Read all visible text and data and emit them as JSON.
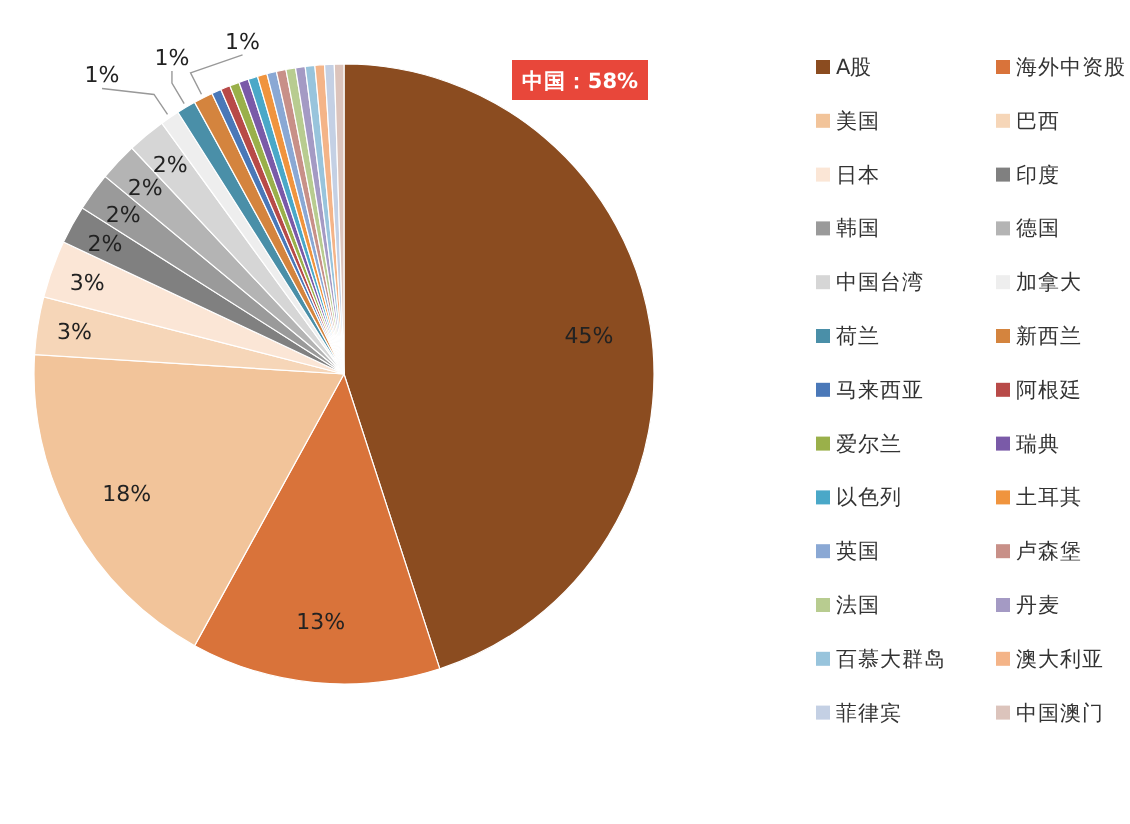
{
  "chart_data": {
    "type": "pie",
    "categories": [
      "A股",
      "海外中资股",
      "美国",
      "巴西",
      "日本",
      "印度",
      "韩国",
      "德国",
      "中国台湾",
      "加拿大",
      "荷兰",
      "新西兰",
      "马来西亚",
      "阿根廷",
      "爱尔兰",
      "瑞典",
      "以色列",
      "土耳其",
      "英国",
      "卢森堡",
      "法国",
      "丹麦",
      "百慕大群岛",
      "澳大利亚",
      "菲律宾",
      "中国澳门"
    ],
    "values": [
      45,
      13,
      18,
      3,
      3,
      2,
      2,
      2,
      2,
      1,
      1,
      1,
      0.5,
      0.5,
      0.5,
      0.5,
      0.5,
      0.5,
      0.5,
      0.5,
      0.5,
      0.5,
      0.5,
      0.5,
      0.5,
      0.5
    ],
    "value_labels": [
      "45%",
      "13%",
      "18%",
      "3%",
      "3%",
      "2%",
      "2%",
      "2%",
      "2%",
      "1%",
      "1%",
      "1%",
      null,
      null,
      null,
      null,
      null,
      null,
      null,
      null,
      null,
      null,
      null,
      null,
      null,
      null
    ],
    "colors": [
      "#8b4c20",
      "#d9733a",
      "#f2c49a",
      "#f6d6b8",
      "#fbe6d6",
      "#808080",
      "#9a9a9a",
      "#b4b4b4",
      "#d6d6d6",
      "#eeeeee",
      "#4a8fa8",
      "#d4843e",
      "#4a78b8",
      "#b84a48",
      "#9ab04a",
      "#7a5aa8",
      "#4aa8c8",
      "#f0943e",
      "#8aa8d4",
      "#c89088",
      "#b8cc90",
      "#a49ac4",
      "#98c4dc",
      "#f4b488",
      "#c4d0e4",
      "#dcc4bc"
    ],
    "legend": "right",
    "annotations": [
      "中国：58%"
    ]
  }
}
